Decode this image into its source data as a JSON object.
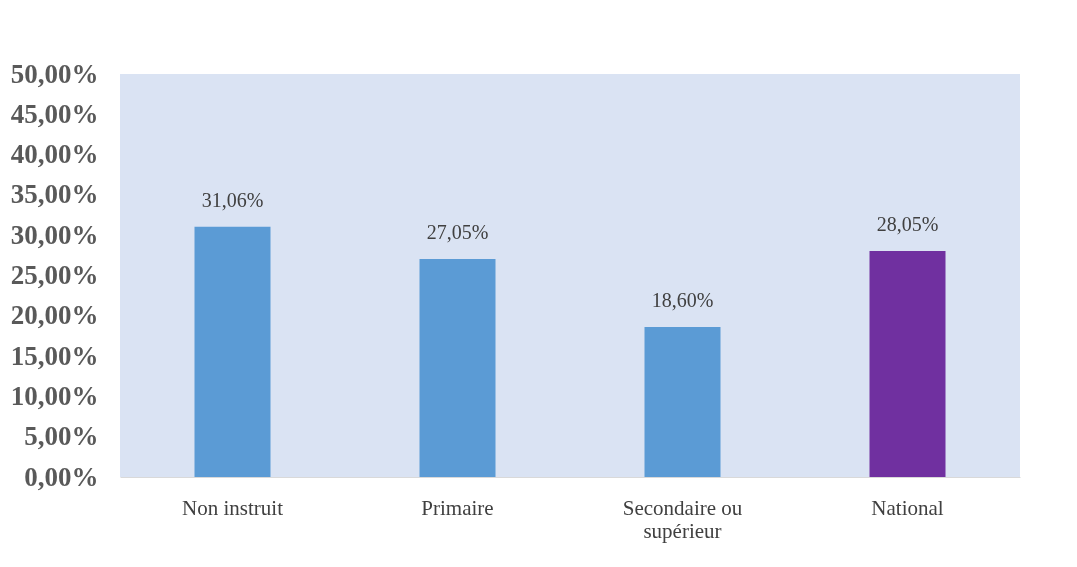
{
  "chart_data": {
    "type": "bar",
    "categories": [
      "Non instruit",
      "Primaire",
      "Secondaire ou supérieur",
      "National"
    ],
    "values": [
      31.06,
      27.05,
      18.6,
      28.05
    ],
    "colors": [
      "#5b9bd5",
      "#5b9bd5",
      "#5b9bd5",
      "#7030a0"
    ],
    "ylim": [
      0,
      50
    ],
    "yticks": [
      {
        "value": 0,
        "label": "0,00%"
      },
      {
        "value": 5,
        "label": "5,00%"
      },
      {
        "value": 10,
        "label": "10,00%"
      },
      {
        "value": 15,
        "label": "15,00%"
      },
      {
        "value": 20,
        "label": "20,00%"
      },
      {
        "value": 25,
        "label": "25,00%"
      },
      {
        "value": 30,
        "label": "30,00%"
      },
      {
        "value": 35,
        "label": "35,00%"
      },
      {
        "value": 40,
        "label": "40,00%"
      },
      {
        "value": 45,
        "label": "45,00%"
      },
      {
        "value": 50,
        "label": "50,00%"
      }
    ],
    "value_labels": [
      "31,06%",
      "27,05%",
      "18,60%",
      "28,05%"
    ],
    "grid": false
  }
}
